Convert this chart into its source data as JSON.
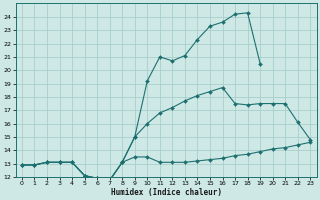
{
  "xlabel": "Humidex (Indice chaleur)",
  "bg_color": "#cde8e5",
  "grid_color": "#a8ceca",
  "line_color": "#1e7070",
  "line1_x": [
    0,
    1,
    2,
    3,
    4,
    5,
    6,
    7,
    8,
    9,
    10,
    11,
    12,
    13,
    14,
    15,
    16,
    17,
    18,
    19,
    20,
    21,
    22,
    23
  ],
  "line1_y": [
    12.9,
    12.9,
    13.1,
    13.1,
    13.1,
    12.1,
    11.9,
    11.75,
    13.1,
    13.5,
    13.5,
    13.1,
    13.1,
    13.1,
    13.2,
    13.3,
    13.4,
    13.6,
    13.7,
    13.9,
    14.1,
    14.2,
    14.4,
    14.6
  ],
  "line2_x": [
    0,
    1,
    2,
    3,
    4,
    5,
    6,
    7,
    8,
    9,
    10,
    11,
    12,
    13,
    14,
    15,
    16,
    17,
    18,
    19
  ],
  "line2_y": [
    12.9,
    12.9,
    13.1,
    13.1,
    13.1,
    12.1,
    11.9,
    11.75,
    13.1,
    15.0,
    19.2,
    21.0,
    20.7,
    21.1,
    22.3,
    23.3,
    23.6,
    24.2,
    24.3,
    20.5
  ],
  "line3_x": [
    0,
    1,
    2,
    3,
    4,
    5,
    6,
    7,
    8,
    9,
    10,
    11,
    12,
    13,
    14,
    15,
    16,
    17,
    18,
    19,
    20,
    21,
    22,
    23
  ],
  "line3_y": [
    12.9,
    12.9,
    13.1,
    13.1,
    13.1,
    12.1,
    11.9,
    11.75,
    13.1,
    15.0,
    16.0,
    16.8,
    17.2,
    17.7,
    18.1,
    18.4,
    18.7,
    17.5,
    17.4,
    17.5,
    17.5,
    17.5,
    16.1,
    14.8
  ],
  "ylim": [
    12,
    25
  ],
  "xlim": [
    -0.5,
    23.5
  ],
  "yticks": [
    12,
    13,
    14,
    15,
    16,
    17,
    18,
    19,
    20,
    21,
    22,
    23,
    24
  ],
  "xticks": [
    0,
    1,
    2,
    3,
    4,
    5,
    6,
    7,
    8,
    9,
    10,
    11,
    12,
    13,
    14,
    15,
    16,
    17,
    18,
    19,
    20,
    21,
    22,
    23
  ]
}
